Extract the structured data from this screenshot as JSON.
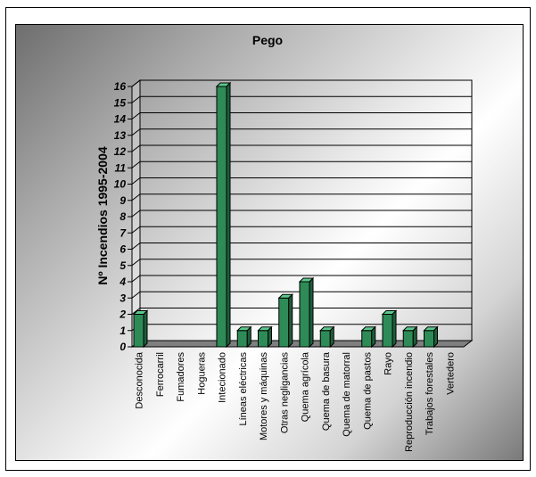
{
  "chart_data": {
    "type": "bar",
    "title": "Pego",
    "xlabel": "",
    "ylabel": "Nº Incendios 1995-2004",
    "ylim": [
      0,
      16
    ],
    "yticks": [
      "0",
      "1",
      "2",
      "3",
      "4",
      "5",
      "6",
      "7",
      "8",
      "9",
      "10",
      "11",
      "12",
      "13",
      "14",
      "15",
      "16"
    ],
    "categories": [
      "Desconocida",
      "Ferrocarril",
      "Fumadores",
      "Hogueras",
      "Intecionado",
      "Líneas eléctricas",
      "Motores y máquinas",
      "Otras negligancias",
      "Quema agrícola",
      "Quema de basura",
      "Quema de matorral",
      "Quema de pastos",
      "Rayo",
      "Reproducción incendio",
      "Trabajos forestales",
      "Vertedero"
    ],
    "values": [
      2,
      0,
      0,
      0,
      16,
      1,
      1,
      3,
      4,
      1,
      0,
      1,
      2,
      1,
      1,
      0
    ],
    "bar_color": "#2e8b57",
    "grid": true,
    "legend": "none",
    "style": "3d"
  }
}
